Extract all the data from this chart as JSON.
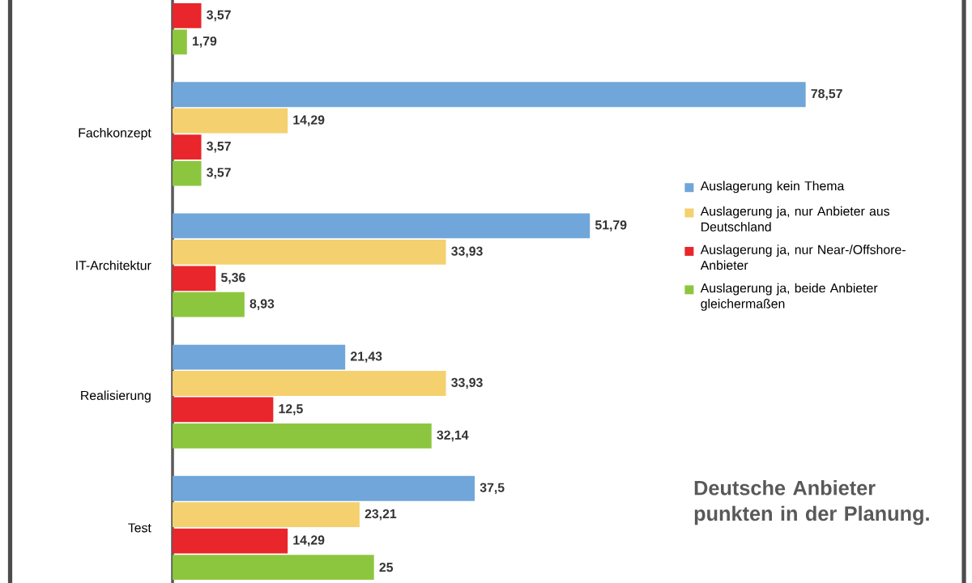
{
  "chart_data": {
    "type": "bar",
    "orientation": "horizontal",
    "categories": [
      null,
      "Fachkonzept",
      "IT-Architektur",
      "Realisierung",
      "Test"
    ],
    "series": [
      {
        "name": "Auslagerung kein Thema",
        "color": "#70a6d9",
        "values": [
          null,
          78.57,
          51.79,
          21.43,
          37.5
        ],
        "value_labels": [
          null,
          "78,57",
          "51,79",
          "21,43",
          "37,5"
        ]
      },
      {
        "name": "Auslagerung ja, nur Anbieter aus Deutschland",
        "color": "#f5d06e",
        "values": [
          null,
          14.29,
          33.93,
          33.93,
          23.21
        ],
        "value_labels": [
          null,
          "14,29",
          "33,93",
          "33,93",
          "23,21"
        ]
      },
      {
        "name": "Auslagerung ja, nur Near-/Offshore-Anbieter",
        "color": "#e8262b",
        "values": [
          3.57,
          3.57,
          5.36,
          12.5,
          14.29
        ],
        "value_labels": [
          "3,57",
          "3,57",
          "5,36",
          "12,5",
          "14,29"
        ]
      },
      {
        "name": "Auslagerung ja, beide Anbieter gleichermaßen",
        "color": "#8cc63f",
        "values": [
          1.79,
          3.57,
          8.93,
          32.14,
          25
        ],
        "value_labels": [
          "1,79",
          "3,57",
          "8,93",
          "32,14",
          "25"
        ]
      }
    ],
    "tick_labels": "y",
    "legend": "right",
    "annotations": [
      "Deutsche Anbieter punkten in der Planung."
    ]
  }
}
